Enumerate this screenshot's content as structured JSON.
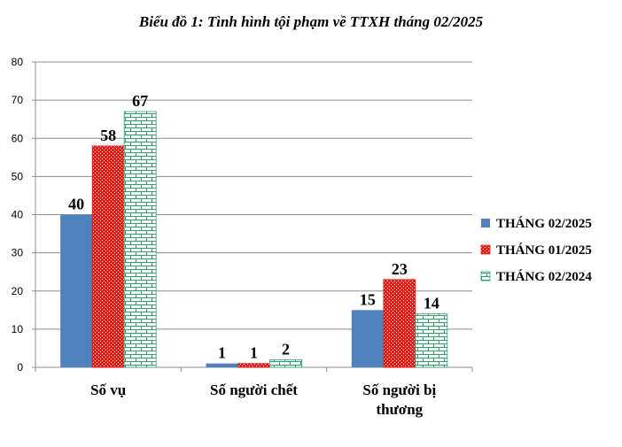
{
  "chart_data": {
    "type": "bar",
    "title": "Biểu đồ 1: Tình hình tội phạm về TTXH tháng 02/2025",
    "categories": [
      [
        "Số vụ"
      ],
      [
        "Số người chết"
      ],
      [
        "Số người bị",
        "thương"
      ]
    ],
    "series": [
      {
        "name": "THÁNG 02/2025",
        "values": [
          40,
          1,
          15
        ],
        "color": "#4F81BD",
        "pattern": "solid"
      },
      {
        "name": "THÁNG 01/2025",
        "values": [
          58,
          1,
          23
        ],
        "color": "#E8201A",
        "pattern": "dots"
      },
      {
        "name": "THÁNG 02/2024",
        "values": [
          67,
          2,
          14
        ],
        "color": "#2E9E6E",
        "pattern": "bricks"
      }
    ],
    "ylim": [
      0,
      80
    ],
    "yticks": [
      0,
      10,
      20,
      30,
      40,
      50,
      60,
      70,
      80
    ],
    "grid": true,
    "legend": "right"
  }
}
